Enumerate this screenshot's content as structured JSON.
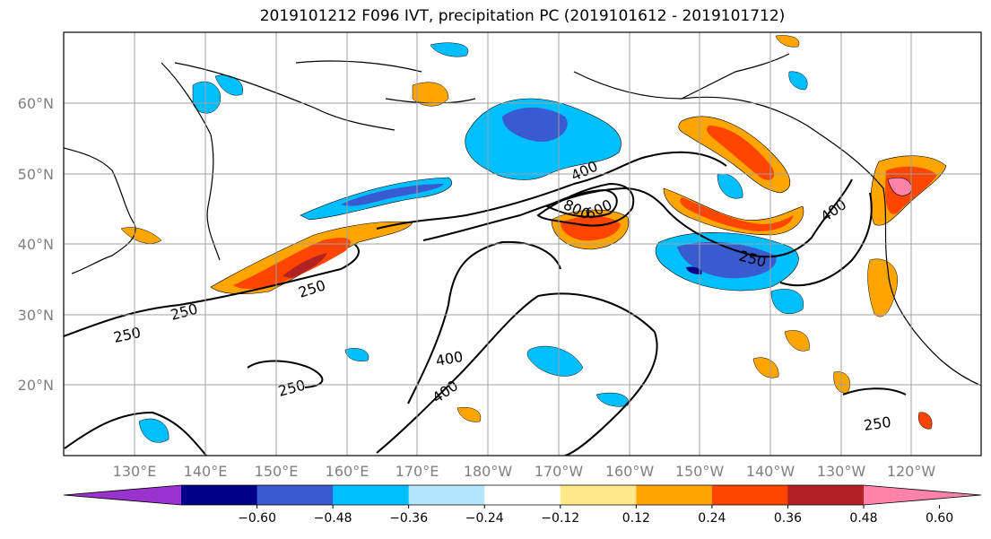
{
  "title": "2019101212 F096 IVT, precipitation PC (2019101612 - 2019101712)",
  "map": {
    "lon_labels": [
      "130°E",
      "140°E",
      "150°E",
      "160°E",
      "170°E",
      "180°W",
      "170°W",
      "160°W",
      "150°W",
      "140°W",
      "130°W",
      "120°W"
    ],
    "lat_labels": [
      "60°N",
      "50°N",
      "40°N",
      "30°N",
      "20°N"
    ],
    "contour_labels": [
      "250",
      "250",
      "250",
      "250",
      "250",
      "400",
      "400",
      "400",
      "400",
      "600",
      "800",
      "250"
    ]
  },
  "colorbar": {
    "levels": [
      "−0.60",
      "−0.48",
      "−0.36",
      "−0.24",
      "−0.12",
      "0.12",
      "0.24",
      "0.36",
      "0.48",
      "0.60"
    ],
    "colors": [
      "#9a32cd",
      "#00008b",
      "#3a5bd0",
      "#00bfff",
      "#b3e5ff",
      "#ffffff",
      "#ffe98a",
      "#ffa500",
      "#ff4500",
      "#b22222",
      "#ff82ab"
    ]
  }
}
